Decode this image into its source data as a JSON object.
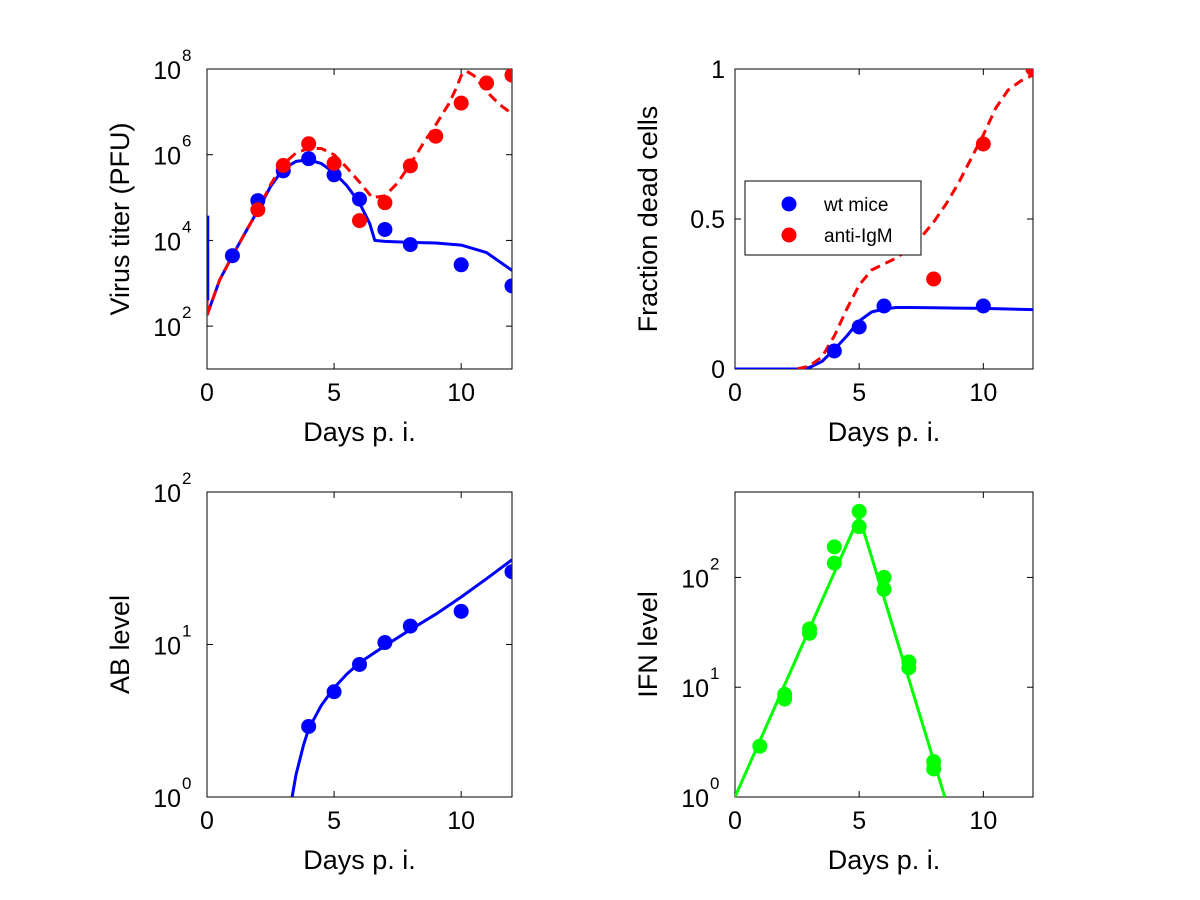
{
  "colors": {
    "wt": "#0000ff",
    "anti": "#ff0000",
    "ifn": "#00ff00",
    "axis": "#000000",
    "background": "#ffffff"
  },
  "legend": {
    "panel": "dead",
    "placement": "center-left",
    "entries": [
      {
        "label": "wt mice",
        "color": "#0000ff"
      },
      {
        "label": "anti-IgM",
        "color": "#ff0000"
      }
    ]
  },
  "chart_data": [
    {
      "id": "virus",
      "type": "scatter",
      "xlabel": "Days p. i.",
      "ylabel": "Virus titer (PFU)",
      "yscale": "log",
      "xlim": [
        0,
        12
      ],
      "ylim": [
        10,
        100000000
      ],
      "xticks": [
        0,
        5,
        10
      ],
      "xtick_labels": [
        "0",
        "5",
        "10"
      ],
      "yticks": [
        100,
        10000,
        1000000,
        100000000
      ],
      "ytick_labels": [
        {
          "base": "10",
          "exp": "2"
        },
        {
          "base": "10",
          "exp": "4"
        },
        {
          "base": "10",
          "exp": "6"
        },
        {
          "base": "10",
          "exp": "8"
        }
      ],
      "grid": false,
      "series": [
        {
          "kind": "points",
          "color": "#0000ff",
          "x": [
            1,
            2,
            3,
            4,
            5,
            6,
            7,
            8,
            10,
            12
          ],
          "y": [
            4400,
            85000,
            420000,
            810000,
            340000,
            92000,
            18000,
            8000,
            2700,
            870
          ]
        },
        {
          "kind": "points",
          "color": "#ff0000",
          "x": [
            2,
            3,
            4,
            5,
            6,
            7,
            8,
            9,
            10,
            11,
            12
          ],
          "y": [
            52000,
            560000,
            1800000,
            630000,
            29000,
            76000,
            550000,
            2700000,
            16000000,
            47000000,
            72000000
          ]
        },
        {
          "kind": "line",
          "style": "solid",
          "color": "#0000ff",
          "x": [
            0.0,
            0.5,
            1.0,
            1.5,
            2.0,
            2.5,
            3.0,
            3.5,
            4.0,
            4.5,
            5.0,
            5.5,
            6.0,
            6.4,
            6.6,
            7.0,
            8.0,
            9.0,
            10.0,
            11.0,
            12.0
          ],
          "y": [
            180,
            1200,
            4400,
            15000,
            50000,
            180000,
            470000,
            700000,
            760000,
            620000,
            380000,
            190000,
            75000,
            25000,
            10000,
            9500,
            9000,
            8700,
            7800,
            5200,
            2000
          ]
        },
        {
          "kind": "line",
          "style": "dashed",
          "color": "#ff0000",
          "x": [
            0.0,
            0.5,
            1.0,
            1.5,
            2.0,
            2.5,
            3.0,
            3.5,
            4.0,
            4.5,
            5.0,
            5.5,
            6.0,
            6.5,
            7.0,
            7.5,
            8.0,
            8.5,
            9.0,
            9.5,
            9.8,
            10.0,
            10.2,
            10.5,
            11.0,
            11.5,
            12.0
          ],
          "y": [
            180,
            1200,
            4400,
            15000,
            50000,
            200000,
            600000,
            1100000,
            1400000,
            1400000,
            1000000,
            500000,
            230000,
            100000,
            110000,
            220000,
            600000,
            1800000,
            5000000,
            15000000,
            35000000,
            70000000,
            90000000,
            70000000,
            30000000,
            15000000,
            9000000
          ]
        },
        {
          "kind": "vline",
          "color": "#ff0000",
          "x": 0.0,
          "y": [
            180,
            35000
          ]
        },
        {
          "kind": "vline",
          "color": "#0000ff",
          "x": 0.03,
          "y": [
            400,
            38000
          ]
        }
      ]
    },
    {
      "id": "dead",
      "type": "scatter",
      "xlabel": "Days p. i.",
      "ylabel": "Fraction dead cells",
      "yscale": "linear",
      "xlim": [
        0,
        12
      ],
      "ylim": [
        0,
        1
      ],
      "xticks": [
        0,
        5,
        10
      ],
      "xtick_labels": [
        "0",
        "5",
        "10"
      ],
      "yticks": [
        0,
        0.5,
        1
      ],
      "ytick_labels": [
        "0",
        "0.5",
        "1"
      ],
      "grid": false,
      "series": [
        {
          "kind": "points",
          "color": "#0000ff",
          "name": "wt mice",
          "x": [
            4,
            5,
            6,
            10
          ],
          "y": [
            0.06,
            0.14,
            0.21,
            0.21
          ]
        },
        {
          "kind": "points",
          "color": "#ff0000",
          "name": "anti-IgM",
          "x": [
            8,
            10,
            12
          ],
          "y": [
            0.3,
            0.75,
            1.0
          ]
        },
        {
          "kind": "line",
          "style": "solid",
          "color": "#0000ff",
          "x": [
            0.0,
            1.0,
            2.0,
            2.5,
            3.0,
            3.5,
            4.0,
            4.5,
            5.0,
            5.5,
            6.0,
            6.5,
            7.0,
            8.0,
            9.0,
            10.0,
            11.0,
            12.0
          ],
          "y": [
            0.0,
            0.0,
            0.0,
            0.0,
            0.005,
            0.025,
            0.065,
            0.11,
            0.16,
            0.19,
            0.2,
            0.205,
            0.205,
            0.204,
            0.203,
            0.202,
            0.2,
            0.198
          ]
        },
        {
          "kind": "line",
          "style": "dashed",
          "color": "#ff0000",
          "x": [
            2.5,
            3.0,
            3.5,
            4.0,
            4.5,
            5.0,
            5.5,
            6.0,
            6.5,
            7.0,
            7.5,
            8.0,
            8.5,
            9.0,
            9.5,
            10.0,
            10.5,
            11.0,
            11.5,
            12.0
          ],
          "y": [
            0.0,
            0.01,
            0.04,
            0.11,
            0.2,
            0.28,
            0.33,
            0.35,
            0.37,
            0.4,
            0.44,
            0.49,
            0.55,
            0.62,
            0.7,
            0.78,
            0.87,
            0.93,
            0.96,
            0.98
          ]
        }
      ]
    },
    {
      "id": "ab",
      "type": "scatter",
      "xlabel": "Days p. i.",
      "ylabel": "AB level",
      "yscale": "log",
      "xlim": [
        0,
        12
      ],
      "ylim": [
        1,
        100
      ],
      "xticks": [
        0,
        5,
        10
      ],
      "xtick_labels": [
        "0",
        "5",
        "10"
      ],
      "yticks": [
        1,
        10,
        100
      ],
      "ytick_labels": [
        {
          "base": "10",
          "exp": "0"
        },
        {
          "base": "10",
          "exp": "1"
        },
        {
          "base": "10",
          "exp": "2"
        }
      ],
      "grid": false,
      "series": [
        {
          "kind": "points",
          "color": "#0000ff",
          "x": [
            4,
            5,
            6,
            7,
            8,
            10,
            12
          ],
          "y": [
            2.9,
            4.9,
            7.4,
            10.3,
            13.2,
            16.5,
            30
          ]
        },
        {
          "kind": "line",
          "style": "solid",
          "color": "#0000ff",
          "x": [
            3.35,
            3.5,
            3.8,
            4.0,
            4.5,
            5.0,
            5.5,
            6.0,
            7.0,
            8.0,
            9.0,
            10.0,
            11.0,
            12.0
          ],
          "y": [
            1.0,
            1.4,
            2.2,
            2.8,
            4.0,
            5.2,
            6.4,
            7.6,
            9.8,
            12.5,
            15.8,
            20.5,
            27,
            36
          ]
        }
      ]
    },
    {
      "id": "ifn",
      "type": "scatter",
      "xlabel": "Days p. i.",
      "ylabel": "IFN level",
      "yscale": "log",
      "xlim": [
        0,
        12
      ],
      "ylim": [
        1,
        600
      ],
      "xticks": [
        0,
        5,
        10
      ],
      "xtick_labels": [
        "0",
        "5",
        "10"
      ],
      "yticks": [
        1,
        10,
        100
      ],
      "ytick_labels": [
        {
          "base": "10",
          "exp": "0"
        },
        {
          "base": "10",
          "exp": "1"
        },
        {
          "base": "10",
          "exp": "2"
        }
      ],
      "grid": false,
      "series": [
        {
          "kind": "points",
          "color": "#00ff00",
          "x": [
            1,
            2,
            2,
            3,
            3,
            4,
            4,
            5,
            5,
            6,
            6,
            7,
            7,
            8,
            8
          ],
          "y": [
            2.9,
            7.8,
            8.6,
            31,
            34,
            135,
            190,
            290,
            400,
            78,
            100,
            15,
            17,
            1.8,
            2.1
          ]
        },
        {
          "kind": "line",
          "style": "solid",
          "color": "#00ff00",
          "x": [
            0,
            5,
            8.45
          ],
          "y": [
            1.0,
            360,
            1.0
          ]
        }
      ]
    }
  ]
}
